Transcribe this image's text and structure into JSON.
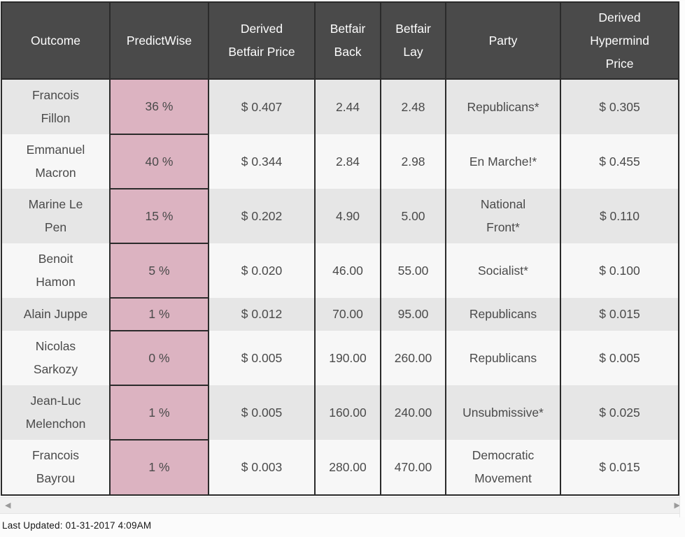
{
  "colors": {
    "header_bg": "#4a4a4a",
    "header_text": "#fdfdfd",
    "row_odd_bg": "#e6e6e6",
    "row_even_bg": "#f7f7f7",
    "predictwise_bg": "#dcb3c1",
    "border_dark": "#2b2b2b",
    "body_text": "#4a4a4a",
    "page_bg": "#fbfbfb",
    "scrollbar_track": "#f0f0f0",
    "scrollbar_arrow": "#9a9a9a"
  },
  "table": {
    "columns": [
      {
        "key": "outcome",
        "label": "Outcome"
      },
      {
        "key": "predictwise",
        "label": "PredictWise"
      },
      {
        "key": "derived-betfair-price",
        "label": "Derived\nBetfair Price"
      },
      {
        "key": "betfair-back",
        "label": "Betfair\nBack"
      },
      {
        "key": "betfair-lay",
        "label": "Betfair\nLay"
      },
      {
        "key": "party",
        "label": "Party"
      },
      {
        "key": "derived-hypermind-price",
        "label": "Derived\nHypermind\nPrice"
      }
    ],
    "rows": [
      [
        "Francois\nFillon",
        "36 %",
        "$ 0.407",
        "2.44",
        "2.48",
        "Republicans*",
        "$ 0.305"
      ],
      [
        "Emmanuel\nMacron",
        "40 %",
        "$ 0.344",
        "2.84",
        "2.98",
        "En Marche!*",
        "$ 0.455"
      ],
      [
        "Marine Le\nPen",
        "15 %",
        "$ 0.202",
        "4.90",
        "5.00",
        "National\nFront*",
        "$ 0.110"
      ],
      [
        "Benoit\nHamon",
        "5 %",
        "$ 0.020",
        "46.00",
        "55.00",
        "Socialist*",
        "$ 0.100"
      ],
      [
        "Alain Juppe",
        "1 %",
        "$ 0.012",
        "70.00",
        "95.00",
        "Republicans",
        "$ 0.015"
      ],
      [
        "Nicolas\nSarkozy",
        "0 %",
        "$ 0.005",
        "190.00",
        "260.00",
        "Republicans",
        "$ 0.005"
      ],
      [
        "Jean-Luc\nMelenchon",
        "1 %",
        "$ 0.005",
        "160.00",
        "240.00",
        "Unsubmissive*",
        "$ 0.025"
      ],
      [
        "Francois\nBayrou",
        "1 %",
        "$ 0.003",
        "280.00",
        "470.00",
        "Democratic\nMovement",
        "$ 0.015"
      ]
    ]
  },
  "scrollbar": {
    "left_arrow": "◀",
    "right_arrow": "▶"
  },
  "footer": {
    "last_updated": "Last Updated: 01-31-2017 4:09AM"
  }
}
